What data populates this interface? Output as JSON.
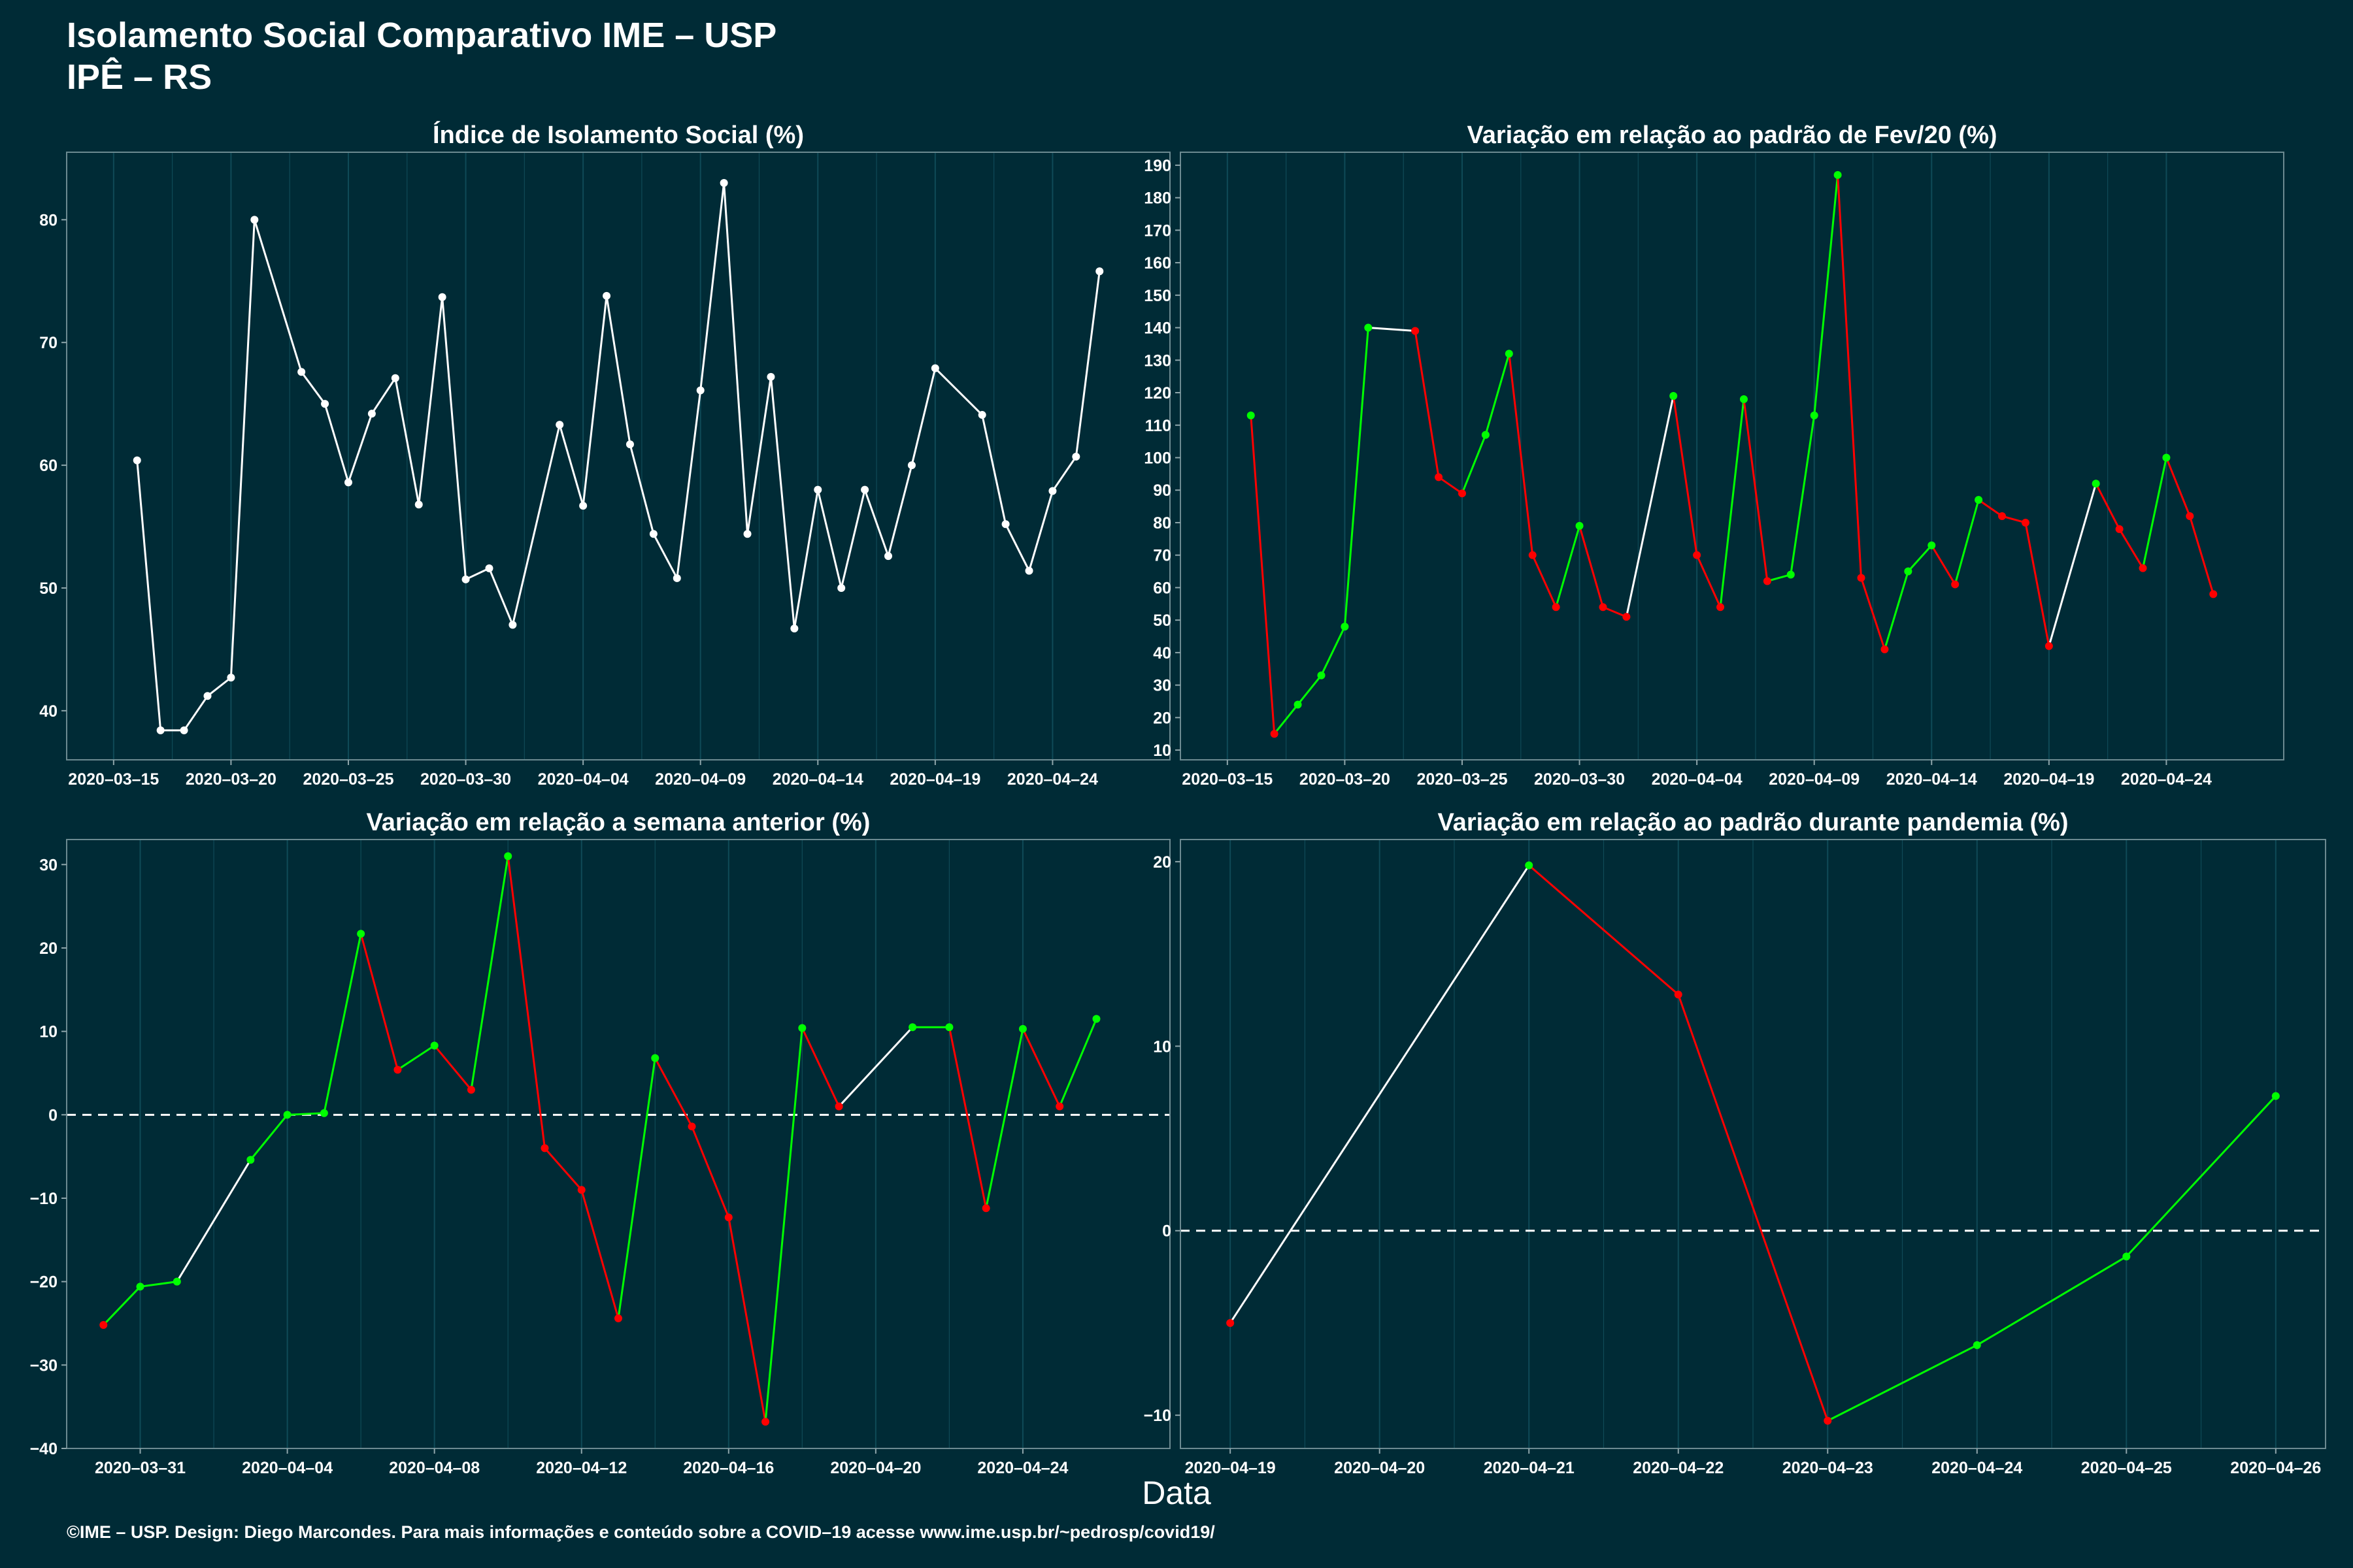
{
  "header": {
    "title": "Isolamento Social Comparativo IME – USP",
    "subtitle": "IPÊ – RS"
  },
  "x_axis_label": "Data",
  "caption": "©IME – USP. Design: Diego Marcondes. Para mais informações e conteúdo sobre a COVID–19 acesse www.ime.usp.br/~pedrosp/covid19/",
  "colors": {
    "background": "#002b36",
    "neutral": "#ffffff",
    "up": "#00ff00",
    "down": "#ff0000",
    "grid": "#0f4a57"
  },
  "chart_data": [
    {
      "type": "line",
      "title": "Índice de Isolamento Social (%)",
      "xlim": [
        "2020-03-13",
        "2020-04-29"
      ],
      "ylim": [
        36,
        85.5
      ],
      "x_ticks": [
        "2020-03-15",
        "2020-03-20",
        "2020-03-25",
        "2020-03-30",
        "2020-04-04",
        "2020-04-09",
        "2020-04-14",
        "2020-04-19",
        "2020-04-24"
      ],
      "y_ticks": [
        40,
        50,
        60,
        70,
        80
      ],
      "colored_segments": false,
      "points": [
        [
          "2020-03-16",
          60.4
        ],
        [
          "2020-03-17",
          38.4
        ],
        [
          "2020-03-18",
          38.4
        ],
        [
          "2020-03-19",
          41.2
        ],
        [
          "2020-03-20",
          42.7
        ],
        [
          "2020-03-21",
          80.0
        ],
        [
          "2020-03-23",
          67.6
        ],
        [
          "2020-03-24",
          65.0
        ],
        [
          "2020-03-25",
          58.6
        ],
        [
          "2020-03-26",
          64.2
        ],
        [
          "2020-03-27",
          67.1
        ],
        [
          "2020-03-28",
          56.8
        ],
        [
          "2020-03-29",
          73.7
        ],
        [
          "2020-03-30",
          50.7
        ],
        [
          "2020-03-31",
          51.6
        ],
        [
          "2020-04-01",
          47.0
        ],
        [
          "2020-04-03",
          63.3
        ],
        [
          "2020-04-04",
          56.7
        ],
        [
          "2020-04-05",
          73.8
        ],
        [
          "2020-04-06",
          61.7
        ],
        [
          "2020-04-07",
          54.4
        ],
        [
          "2020-04-08",
          50.8
        ],
        [
          "2020-04-09",
          66.1
        ],
        [
          "2020-04-10",
          83.0
        ],
        [
          "2020-04-11",
          54.4
        ],
        [
          "2020-04-12",
          67.2
        ],
        [
          "2020-04-13",
          46.7
        ],
        [
          "2020-04-14",
          58.0
        ],
        [
          "2020-04-15",
          50.0
        ],
        [
          "2020-04-16",
          58.0
        ],
        [
          "2020-04-17",
          52.6
        ],
        [
          "2020-04-18",
          60.0
        ],
        [
          "2020-04-19",
          67.9
        ],
        [
          "2020-04-21",
          64.1
        ],
        [
          "2020-04-22",
          55.2
        ],
        [
          "2020-04-23",
          51.4
        ],
        [
          "2020-04-24",
          57.9
        ],
        [
          "2020-04-25",
          60.7
        ],
        [
          "2020-04-26",
          75.8
        ]
      ]
    },
    {
      "type": "line",
      "title": "Variação em relação ao padrão de Fev/20 (%)",
      "xlim": [
        "2020-03-13",
        "2020-04-29"
      ],
      "ylim": [
        7,
        194
      ],
      "x_ticks": [
        "2020-03-15",
        "2020-03-20",
        "2020-03-25",
        "2020-03-30",
        "2020-04-04",
        "2020-04-09",
        "2020-04-14",
        "2020-04-19",
        "2020-04-24"
      ],
      "y_ticks": [
        10,
        20,
        30,
        40,
        50,
        60,
        70,
        80,
        90,
        100,
        110,
        120,
        130,
        140,
        150,
        160,
        170,
        180,
        190
      ],
      "colored_segments": true,
      "points": [
        [
          "2020-03-16",
          113
        ],
        [
          "2020-03-17",
          15
        ],
        [
          "2020-03-18",
          24
        ],
        [
          "2020-03-19",
          33
        ],
        [
          "2020-03-20",
          48
        ],
        [
          "2020-03-21",
          140
        ],
        [
          "2020-03-23",
          139
        ],
        [
          "2020-03-24",
          94
        ],
        [
          "2020-03-25",
          89
        ],
        [
          "2020-03-26",
          107
        ],
        [
          "2020-03-27",
          132
        ],
        [
          "2020-03-28",
          70
        ],
        [
          "2020-03-29",
          54
        ],
        [
          "2020-03-30",
          79
        ],
        [
          "2020-03-31",
          54
        ],
        [
          "2020-04-01",
          51
        ],
        [
          "2020-04-03",
          119
        ],
        [
          "2020-04-04",
          70
        ],
        [
          "2020-04-05",
          54
        ],
        [
          "2020-04-06",
          118
        ],
        [
          "2020-04-07",
          62
        ],
        [
          "2020-04-08",
          64
        ],
        [
          "2020-04-09",
          113
        ],
        [
          "2020-04-10",
          187
        ],
        [
          "2020-04-11",
          63
        ],
        [
          "2020-04-12",
          41
        ],
        [
          "2020-04-13",
          65
        ],
        [
          "2020-04-14",
          73
        ],
        [
          "2020-04-15",
          61
        ],
        [
          "2020-04-16",
          87
        ],
        [
          "2020-04-17",
          82
        ],
        [
          "2020-04-18",
          80
        ],
        [
          "2020-04-19",
          42
        ],
        [
          "2020-04-21",
          92
        ],
        [
          "2020-04-22",
          78
        ],
        [
          "2020-04-23",
          66
        ],
        [
          "2020-04-24",
          100
        ],
        [
          "2020-04-25",
          82
        ],
        [
          "2020-04-26",
          58
        ]
      ]
    },
    {
      "type": "line",
      "title": "Variação em relação a semana anterior (%)",
      "xlim": [
        "2020-03-29",
        "2020-04-28"
      ],
      "ylim": [
        -40,
        33
      ],
      "x_ticks": [
        "2020-03-31",
        "2020-04-04",
        "2020-04-08",
        "2020-04-12",
        "2020-04-16",
        "2020-04-20",
        "2020-04-24"
      ],
      "y_ticks": [
        -40,
        -30,
        -20,
        -10,
        0,
        10,
        20,
        30
      ],
      "y_tick_labels": [
        "−40",
        "−30",
        "−20",
        "−10",
        "0",
        "10",
        "20",
        "30"
      ],
      "zero_line": true,
      "colored_segments": true,
      "points": [
        [
          "2020-03-30",
          -25.2
        ],
        [
          "2020-03-31",
          -20.6
        ],
        [
          "2020-04-01",
          -20.0
        ],
        [
          "2020-04-03",
          -5.4
        ],
        [
          "2020-04-04",
          0.0
        ],
        [
          "2020-04-05",
          0.2
        ],
        [
          "2020-04-06",
          21.7
        ],
        [
          "2020-04-07",
          5.4
        ],
        [
          "2020-04-08",
          8.3
        ],
        [
          "2020-04-09",
          3.0
        ],
        [
          "2020-04-10",
          31.0
        ],
        [
          "2020-04-11",
          -4.0
        ],
        [
          "2020-04-12",
          -9.0
        ],
        [
          "2020-04-13",
          -24.4
        ],
        [
          "2020-04-14",
          6.8
        ],
        [
          "2020-04-15",
          -1.4
        ],
        [
          "2020-04-16",
          -12.3
        ],
        [
          "2020-04-17",
          -36.8
        ],
        [
          "2020-04-18",
          10.4
        ],
        [
          "2020-04-19",
          1.0
        ],
        [
          "2020-04-21",
          10.5
        ],
        [
          "2020-04-22",
          10.5
        ],
        [
          "2020-04-23",
          -11.2
        ],
        [
          "2020-04-24",
          10.3
        ],
        [
          "2020-04-25",
          1.0
        ],
        [
          "2020-04-26",
          11.5
        ]
      ]
    },
    {
      "type": "line",
      "title": "Variação em relação ao padrão durante pandemia (%)",
      "xlim": [
        "2020-04-18 16:00",
        "2020-04-26 08:00"
      ],
      "ylim": [
        -11.8,
        21.2
      ],
      "x_ticks": [
        "2020-04-19",
        "2020-04-20",
        "2020-04-21",
        "2020-04-22",
        "2020-04-23",
        "2020-04-24",
        "2020-04-25",
        "2020-04-26"
      ],
      "y_ticks": [
        -10,
        0,
        10,
        20
      ],
      "y_tick_labels": [
        "−10",
        "0",
        "10",
        "20"
      ],
      "zero_line": true,
      "colored_segments": true,
      "points": [
        [
          "2020-04-19",
          -5.0
        ],
        [
          "2020-04-21",
          19.8
        ],
        [
          "2020-04-22",
          12.8
        ],
        [
          "2020-04-23",
          -10.3
        ],
        [
          "2020-04-24",
          -6.2
        ],
        [
          "2020-04-25",
          -1.4
        ],
        [
          "2020-04-26",
          7.3
        ]
      ]
    }
  ]
}
